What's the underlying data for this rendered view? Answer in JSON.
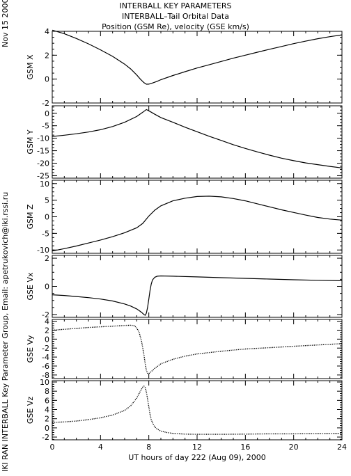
{
  "header": {
    "line1": "INTERBALL KEY PARAMETERS",
    "line2": "INTERBALL–Tail Orbital Data",
    "line3": "Position (GSM Re), velocity (GSE km/s)"
  },
  "date_label": "Nov 15 2000",
  "credit_label": "IKI RAN INTERBALL Key Parameter Group, Email: apetrukovich@iki.rssi.ru",
  "chart_data": {
    "type": "line",
    "xlabel": "UT hours of day 222 (Aug 09), 2000",
    "xlim": [
      0,
      24
    ],
    "xticks": [
      0,
      4,
      8,
      12,
      16,
      20,
      24
    ],
    "xtick_labels": [
      "0",
      "4",
      "8",
      "12",
      "16",
      "20",
      "24"
    ],
    "panels": [
      {
        "ylabel": "GSM X",
        "ylim": [
          -2,
          4
        ],
        "yticks": [
          -2,
          0,
          2,
          4
        ],
        "ytick_labels": [
          "-2",
          "0",
          "2",
          "4"
        ],
        "style": "line",
        "x": [
          0,
          1,
          2,
          3,
          4,
          5,
          6,
          6.5,
          7,
          7.3,
          7.6,
          7.8,
          8.0,
          8.3,
          8.7,
          9,
          10,
          11,
          12,
          13,
          14,
          15,
          16,
          17,
          18,
          19,
          20,
          21,
          22,
          23,
          24
        ],
        "y": [
          4.1,
          3.8,
          3.4,
          2.95,
          2.45,
          1.9,
          1.25,
          0.85,
          0.35,
          0.0,
          -0.3,
          -0.43,
          -0.42,
          -0.33,
          -0.18,
          -0.05,
          0.3,
          0.62,
          0.93,
          1.2,
          1.48,
          1.75,
          2.0,
          2.25,
          2.5,
          2.73,
          2.97,
          3.18,
          3.38,
          3.55,
          3.7
        ]
      },
      {
        "ylabel": "GSM Y",
        "ylim": [
          -26,
          3
        ],
        "yticks": [
          -25,
          -20,
          -15,
          -10,
          -5,
          0
        ],
        "ytick_labels": [
          "-25",
          "-20",
          "-15",
          "-10",
          "-5",
          "0"
        ],
        "style": "line",
        "x": [
          0,
          1,
          2,
          3,
          4,
          5,
          6,
          7,
          7.5,
          7.8,
          8.1,
          8.5,
          9,
          10,
          11,
          12,
          13,
          14,
          15,
          16,
          17,
          18,
          19,
          20,
          21,
          22,
          23,
          24
        ],
        "y": [
          -9.3,
          -8.8,
          -8.2,
          -7.5,
          -6.6,
          -5.3,
          -3.6,
          -1.3,
          0.4,
          1.5,
          0.7,
          -0.4,
          -1.7,
          -3.6,
          -5.6,
          -7.4,
          -9.2,
          -10.9,
          -12.6,
          -14.1,
          -15.5,
          -16.8,
          -18.0,
          -19.0,
          -19.9,
          -20.6,
          -21.3,
          -21.9
        ]
      },
      {
        "ylabel": "GSM Z",
        "ylim": [
          -11,
          11
        ],
        "yticks": [
          -10,
          -5,
          0,
          5,
          10
        ],
        "ytick_labels": [
          "-10",
          "-5",
          "0",
          "5",
          "10"
        ],
        "style": "line",
        "x": [
          0,
          1,
          2,
          3,
          4,
          5,
          6,
          7,
          7.5,
          8,
          8.5,
          9,
          10,
          11,
          12,
          13,
          14,
          15,
          16,
          17,
          18,
          19,
          20,
          21,
          22,
          23,
          24
        ],
        "y": [
          -10.3,
          -9.6,
          -8.8,
          -7.9,
          -7.0,
          -6.0,
          -4.8,
          -3.3,
          -2.0,
          0.2,
          2.0,
          3.3,
          4.8,
          5.6,
          6.1,
          6.2,
          6.0,
          5.5,
          4.8,
          3.9,
          3.0,
          2.1,
          1.3,
          0.5,
          -0.2,
          -0.7,
          -1.0
        ]
      },
      {
        "ylabel": "GSE Vx",
        "ylim": [
          -2.2,
          2.2
        ],
        "yticks": [
          -2,
          0,
          2
        ],
        "ytick_labels": [
          "-2",
          "0",
          "2"
        ],
        "style": "line",
        "x": [
          0,
          1,
          2,
          3,
          4,
          5,
          6,
          6.5,
          7,
          7.3,
          7.5,
          7.6,
          7.7,
          7.8,
          7.9,
          8.0,
          8.1,
          8.2,
          8.3,
          8.5,
          8.7,
          9,
          10,
          12,
          14,
          16,
          18,
          20,
          22,
          24
        ],
        "y": [
          -0.6,
          -0.65,
          -0.72,
          -0.8,
          -0.9,
          -1.04,
          -1.25,
          -1.4,
          -1.6,
          -1.78,
          -1.92,
          -2.0,
          -2.05,
          -1.9,
          -1.5,
          -0.9,
          -0.3,
          0.15,
          0.45,
          0.65,
          0.72,
          0.74,
          0.72,
          0.67,
          0.62,
          0.57,
          0.52,
          0.47,
          0.43,
          0.4
        ]
      },
      {
        "ylabel": "GSE Vy",
        "ylim": [
          -8.8,
          4.4
        ],
        "yticks": [
          -8,
          -6,
          -4,
          -2,
          0,
          2,
          4
        ],
        "ytick_labels": [
          "-8",
          "-6",
          "-4",
          "-2",
          "0",
          "2",
          "4"
        ],
        "style": "dotted",
        "x": [
          0,
          1,
          2,
          3,
          4,
          5,
          6,
          6.5,
          6.8,
          7.0,
          7.2,
          7.4,
          7.6,
          7.7,
          7.8,
          7.9,
          8.0,
          8.1,
          8.3,
          8.5,
          9,
          10,
          11,
          12,
          14,
          16,
          18,
          20,
          22,
          24
        ],
        "y": [
          2.0,
          2.2,
          2.4,
          2.6,
          2.75,
          2.9,
          3.05,
          3.1,
          3.0,
          2.5,
          1.5,
          -0.5,
          -3.5,
          -5.5,
          -7.0,
          -7.6,
          -7.7,
          -7.5,
          -7.0,
          -6.5,
          -5.5,
          -4.5,
          -3.8,
          -3.3,
          -2.7,
          -2.2,
          -1.9,
          -1.6,
          -1.3,
          -1.0
        ]
      },
      {
        "ylabel": "GSE Vz",
        "ylim": [
          -2.6,
          10.3
        ],
        "yticks": [
          -2,
          0,
          2,
          4,
          6,
          8,
          10
        ],
        "ytick_labels": [
          "-2",
          "0",
          "2",
          "4",
          "6",
          "8",
          "10"
        ],
        "style": "dotted",
        "x": [
          0,
          1,
          2,
          3,
          4,
          5,
          6,
          6.5,
          7,
          7.3,
          7.5,
          7.6,
          7.7,
          7.8,
          7.9,
          8.0,
          8.1,
          8.2,
          8.4,
          8.6,
          9,
          9.5,
          10,
          11,
          12,
          14,
          16,
          18,
          20,
          22,
          24
        ],
        "y": [
          1.2,
          1.3,
          1.5,
          1.8,
          2.2,
          2.8,
          3.8,
          4.8,
          6.5,
          8.0,
          8.9,
          9.1,
          8.8,
          7.8,
          6.3,
          4.6,
          3.0,
          1.8,
          0.6,
          -0.1,
          -0.7,
          -1.0,
          -1.2,
          -1.35,
          -1.4,
          -1.4,
          -1.35,
          -1.3,
          -1.3,
          -1.25,
          -1.2
        ]
      }
    ]
  }
}
